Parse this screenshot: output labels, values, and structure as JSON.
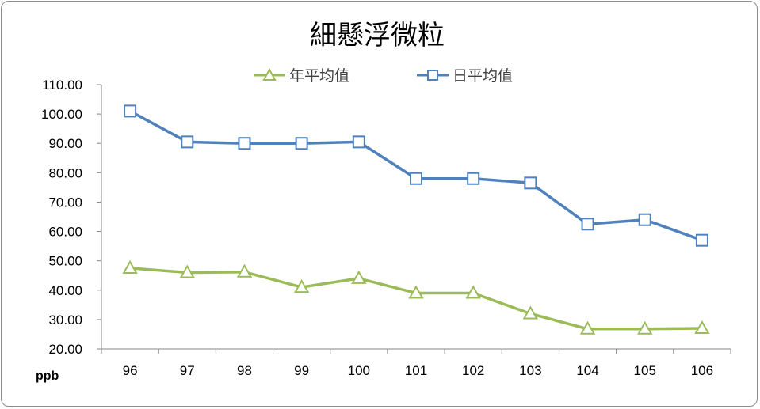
{
  "chart_data": {
    "type": "line",
    "title": "細懸浮微粒",
    "ylabel": "ppb",
    "xlabel": "",
    "categories": [
      "96",
      "97",
      "98",
      "99",
      "100",
      "101",
      "102",
      "103",
      "104",
      "105",
      "106"
    ],
    "ylim": [
      20,
      110
    ],
    "ytick_step": 10,
    "ytick_labels": [
      "20.00",
      "30.00",
      "40.00",
      "50.00",
      "60.00",
      "70.00",
      "80.00",
      "90.00",
      "100.00",
      "110.00"
    ],
    "grid": false,
    "legend_position": "top",
    "series": [
      {
        "name": "年平均值",
        "color": "#9bbb59",
        "marker": "triangle",
        "values": [
          47.5,
          46.0,
          46.2,
          41.0,
          44.0,
          39.0,
          39.0,
          32.0,
          26.8,
          26.8,
          27.0
        ]
      },
      {
        "name": "日平均值",
        "color": "#4f81bd",
        "marker": "square",
        "values": [
          101.0,
          90.5,
          90.0,
          90.0,
          90.5,
          78.0,
          78.0,
          76.5,
          62.5,
          64.0,
          57.0
        ]
      }
    ]
  }
}
